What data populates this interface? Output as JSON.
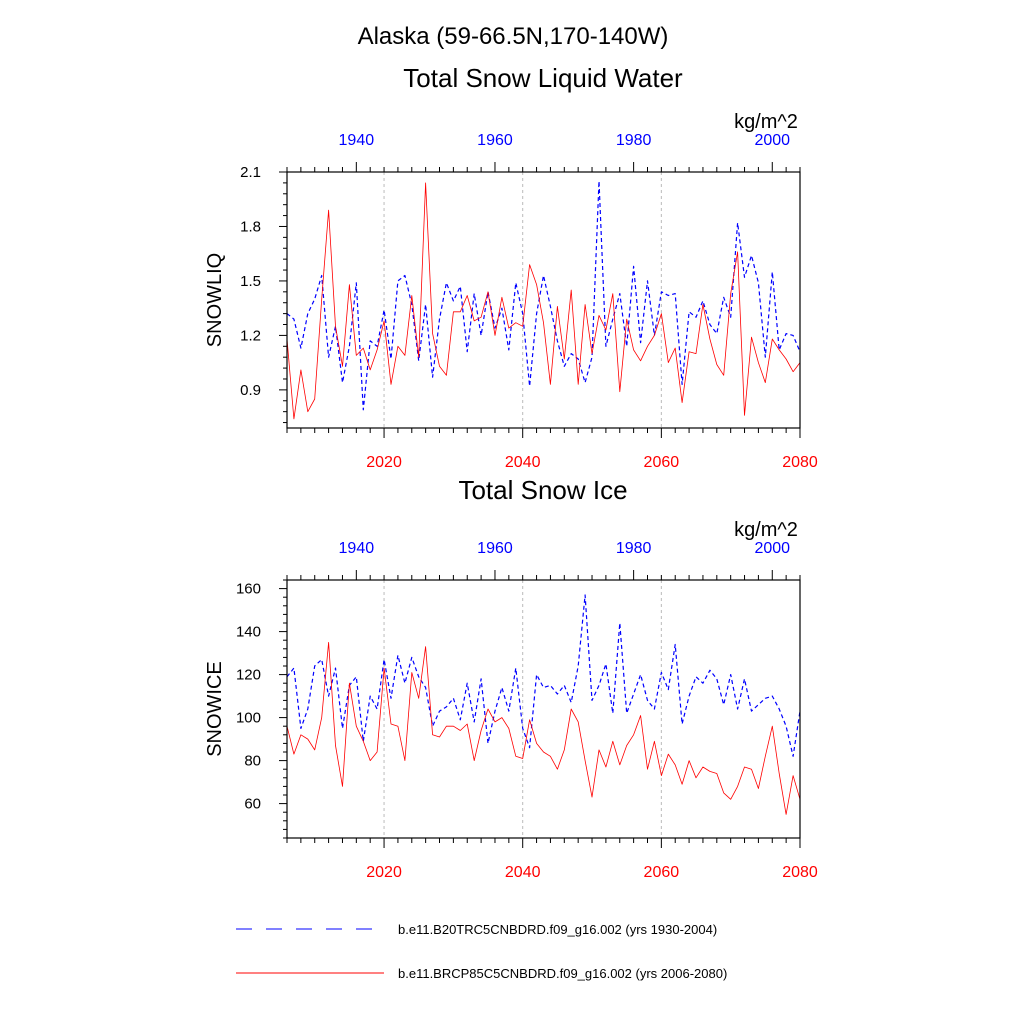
{
  "title": {
    "line1": "Alaska (59-66.5N,170-140W)",
    "line2": "Total Snow Liquid Water"
  },
  "colors": {
    "historical": "#0000ff",
    "future": "#ff0000",
    "axis": "#000000",
    "grid": "#bbbbbb"
  },
  "legend": {
    "historical_label": "b.e11.B20TRC5CNBDRD.f09_g16.002 (yrs 1930-2004)",
    "future_label": "b.e11.BRCP85C5CNBDRD.f09_g16.002 (yrs 2006-2080)"
  },
  "chart_data": [
    {
      "type": "line",
      "id": "snowliq",
      "title": "Total Snow Liquid Water",
      "ylabel": "SNOWLIQ",
      "units": "kg/m^2",
      "ylim": [
        0.69,
        2.1
      ],
      "yticks": [
        0.9,
        1.2,
        1.5,
        1.8,
        2.1
      ],
      "ytick_labels": [
        "0.9",
        "1.2",
        "1.5",
        "1.8",
        "2.1"
      ],
      "x_bottom": {
        "range": [
          2006,
          2080
        ],
        "ticks": [
          2020,
          2040,
          2060,
          2080
        ],
        "tick_labels": [
          "2020",
          "2040",
          "2060",
          "2080"
        ]
      },
      "x_top": {
        "range": [
          1930,
          2004
        ],
        "ticks": [
          1940,
          1960,
          1980,
          2000
        ],
        "tick_labels": [
          "1940",
          "1960",
          "1980",
          "2000"
        ]
      },
      "vertical_grid": [
        2020,
        2040,
        2060
      ],
      "series": [
        {
          "name": "b.e11.B20TRC5CNBDRD.f09_g16.002 (yrs 1930-2004)",
          "axis": "top",
          "style": "dashed",
          "color": "#0000ff",
          "x_start": 1930,
          "values": [
            1.32,
            1.29,
            1.13,
            1.32,
            1.4,
            1.53,
            1.08,
            1.25,
            0.94,
            1.14,
            1.49,
            0.79,
            1.17,
            1.14,
            1.34,
            1.07,
            1.5,
            1.53,
            1.37,
            1.06,
            1.37,
            0.97,
            1.29,
            1.49,
            1.39,
            1.47,
            1.11,
            1.43,
            1.2,
            1.44,
            1.24,
            1.35,
            1.12,
            1.49,
            1.32,
            0.92,
            1.32,
            1.53,
            1.36,
            1.17,
            1.03,
            1.1,
            1.07,
            0.94,
            1.08,
            2.05,
            1.14,
            1.29,
            1.43,
            1.14,
            1.58,
            1.16,
            1.5,
            1.2,
            1.44,
            1.42,
            1.43,
            0.93,
            1.33,
            1.3,
            1.39,
            1.26,
            1.21,
            1.41,
            1.3,
            1.82,
            1.52,
            1.64,
            1.49,
            1.08,
            1.55,
            1.12,
            1.21,
            1.2,
            1.11
          ]
        },
        {
          "name": "b.e11.BRCP85C5CNBDRD.f09_g16.002 (yrs 2006-2080)",
          "axis": "bottom",
          "style": "solid",
          "color": "#ff0000",
          "x_start": 2006,
          "values": [
            1.18,
            0.74,
            1.01,
            0.78,
            0.85,
            1.4,
            1.89,
            1.25,
            1.03,
            1.48,
            1.09,
            1.13,
            1.01,
            1.12,
            1.28,
            0.93,
            1.14,
            1.09,
            1.42,
            1.08,
            2.04,
            1.21,
            1.03,
            0.98,
            1.33,
            1.33,
            1.42,
            1.28,
            1.3,
            1.44,
            1.2,
            1.41,
            1.24,
            1.27,
            1.25,
            1.59,
            1.48,
            1.27,
            0.93,
            1.36,
            1.07,
            1.45,
            0.93,
            1.37,
            1.1,
            1.31,
            1.23,
            1.43,
            0.89,
            1.29,
            1.12,
            1.06,
            1.14,
            1.2,
            1.32,
            1.05,
            1.13,
            0.83,
            1.11,
            1.1,
            1.37,
            1.18,
            1.04,
            0.98,
            1.43,
            1.66,
            0.76,
            1.19,
            1.05,
            0.94,
            1.18,
            1.12,
            1.07,
            1.0,
            1.05
          ]
        }
      ]
    },
    {
      "type": "line",
      "id": "snowice",
      "title": "Total Snow Ice",
      "ylabel": "SNOWICE",
      "units": "kg/m^2",
      "ylim": [
        44,
        164
      ],
      "yticks": [
        60,
        80,
        100,
        120,
        140,
        160
      ],
      "ytick_labels": [
        "60",
        "80",
        "100",
        "120",
        "140",
        "160"
      ],
      "x_bottom": {
        "range": [
          2006,
          2080
        ],
        "ticks": [
          2020,
          2040,
          2060,
          2080
        ],
        "tick_labels": [
          "2020",
          "2040",
          "2060",
          "2080"
        ]
      },
      "x_top": {
        "range": [
          1930,
          2004
        ],
        "ticks": [
          1940,
          1960,
          1980,
          2000
        ],
        "tick_labels": [
          "1940",
          "1960",
          "1980",
          "2000"
        ]
      },
      "vertical_grid": [
        2020,
        2040,
        2060
      ],
      "series": [
        {
          "name": "b.e11.B20TRC5CNBDRD.f09_g16.002 (yrs 1930-2004)",
          "axis": "top",
          "style": "dashed",
          "color": "#0000ff",
          "x_start": 1930,
          "values": [
            119,
            123,
            95,
            104,
            124,
            127,
            110,
            123,
            95,
            115,
            119,
            89,
            110,
            104,
            127,
            109,
            129,
            116,
            128,
            119,
            114,
            96,
            103,
            105,
            109,
            99,
            116,
            98,
            118,
            88,
            103,
            114,
            103,
            123,
            95,
            86,
            120,
            114,
            115,
            111,
            115,
            107,
            124,
            157,
            108,
            115,
            125,
            102,
            144,
            102,
            111,
            120,
            108,
            104,
            121,
            113,
            134,
            97,
            110,
            119,
            116,
            122,
            118,
            106,
            120,
            104,
            118,
            103,
            106,
            109,
            110,
            104,
            96,
            82,
            103
          ]
        },
        {
          "name": "b.e11.BRCP85C5CNBDRD.f09_g16.002 (yrs 2006-2080)",
          "axis": "bottom",
          "style": "solid",
          "color": "#ff0000",
          "x_start": 2006,
          "values": [
            96,
            83,
            92,
            90,
            85,
            100,
            135,
            87,
            68,
            116,
            96,
            89,
            80,
            84,
            123,
            97,
            96,
            80,
            121,
            109,
            133,
            92,
            91,
            96,
            96,
            94,
            97,
            80,
            94,
            104,
            98,
            100,
            95,
            82,
            81,
            99,
            88,
            84,
            82,
            76,
            85,
            104,
            98,
            80,
            63,
            85,
            77,
            89,
            78,
            87,
            92,
            101,
            76,
            89,
            73,
            83,
            78,
            69,
            80,
            72,
            77,
            75,
            74,
            65,
            62,
            68,
            77,
            76,
            67,
            82,
            96,
            74,
            55,
            73,
            62
          ]
        }
      ]
    }
  ]
}
